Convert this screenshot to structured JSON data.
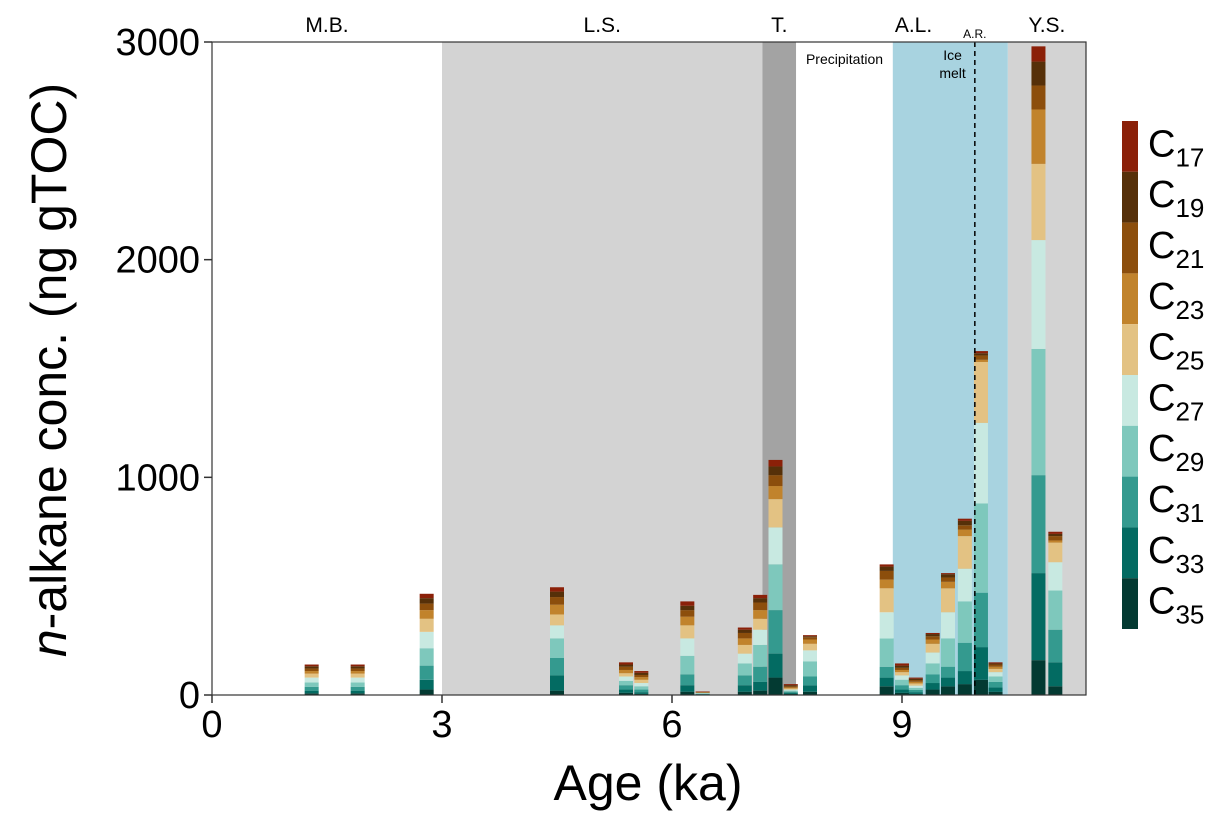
{
  "chart_data": {
    "type": "bar",
    "stacked": true,
    "xlabel_prefix": "n",
    "ylabel": "-alkane conc. (ng gTOC)",
    "xlabel": "Age (ka)",
    "xlim": [
      0,
      11.4
    ],
    "ylim": [
      0,
      3000
    ],
    "x_ticks": [
      0,
      3,
      6,
      9
    ],
    "y_ticks": [
      0,
      1000,
      2000,
      3000
    ],
    "grid": false,
    "legend_position": "right",
    "periods": [
      {
        "label": "M.B.",
        "start": 0,
        "end": 3.0,
        "color": "#ffffff"
      },
      {
        "label": "L.S.",
        "start": 3.0,
        "end": 7.18,
        "color": "#d3d3d3"
      },
      {
        "label": "T.",
        "start": 7.18,
        "end": 7.62,
        "color": "#a3a3a3"
      },
      {
        "label": "A.L.",
        "start": 7.62,
        "end": 10.38,
        "color": "#ffffff"
      },
      {
        "label": "Y.S.",
        "start": 10.38,
        "end": 11.4,
        "color": "#d3d3d3"
      }
    ],
    "sub_periods": [
      {
        "label": "Precipitation",
        "start": 7.62,
        "end": 8.88,
        "color": "#ffffff"
      },
      {
        "label_line1": "Ice",
        "label_line2": "melt",
        "start": 8.88,
        "end": 10.38,
        "color": "#a8d3e0"
      }
    ],
    "ar_marker": {
      "label": "A.R.",
      "x": 9.95
    },
    "legend": [
      {
        "base": "C",
        "sub": "17",
        "color": "#8b2008"
      },
      {
        "base": "C",
        "sub": "19",
        "color": "#563009"
      },
      {
        "base": "C",
        "sub": "21",
        "color": "#8c4e0c"
      },
      {
        "base": "C",
        "sub": "23",
        "color": "#c1832c"
      },
      {
        "base": "C",
        "sub": "25",
        "color": "#e3c283"
      },
      {
        "base": "C",
        "sub": "27",
        "color": "#c8e9e1"
      },
      {
        "base": "C",
        "sub": "29",
        "color": "#7ec8bc"
      },
      {
        "base": "C",
        "sub": "31",
        "color": "#349a8f"
      },
      {
        "base": "C",
        "sub": "33",
        "color": "#036b62"
      },
      {
        "base": "C",
        "sub": "35",
        "color": "#033a32"
      }
    ],
    "stack_order_bottom_to_top": [
      "C35",
      "C33",
      "C31",
      "C29",
      "C27",
      "C25",
      "C23",
      "C21",
      "C19",
      "C17"
    ],
    "samples": [
      {
        "x": 1.3,
        "values": [
          8,
          12,
          18,
          20,
          22,
          18,
          12,
          12,
          10,
          8
        ]
      },
      {
        "x": 1.9,
        "values": [
          8,
          12,
          18,
          20,
          22,
          18,
          12,
          12,
          10,
          8
        ]
      },
      {
        "x": 2.8,
        "values": [
          25,
          45,
          65,
          80,
          75,
          60,
          40,
          30,
          25,
          20
        ]
      },
      {
        "x": 4.5,
        "values": [
          20,
          70,
          80,
          90,
          60,
          50,
          45,
          35,
          25,
          20
        ]
      },
      {
        "x": 5.4,
        "values": [
          10,
          15,
          20,
          20,
          20,
          15,
          15,
          15,
          10,
          10
        ]
      },
      {
        "x": 5.6,
        "values": [
          5,
          8,
          12,
          15,
          15,
          15,
          12,
          10,
          10,
          8
        ]
      },
      {
        "x": 6.2,
        "values": [
          15,
          30,
          50,
          85,
          80,
          60,
          40,
          30,
          20,
          20
        ]
      },
      {
        "x": 6.4,
        "values": [
          2,
          2,
          2,
          2,
          2,
          2,
          1,
          1,
          1,
          1
        ]
      },
      {
        "x": 6.95,
        "values": [
          15,
          30,
          45,
          55,
          45,
          40,
          30,
          25,
          15,
          10
        ]
      },
      {
        "x": 7.15,
        "values": [
          20,
          40,
          70,
          100,
          70,
          50,
          40,
          35,
          20,
          15
        ]
      },
      {
        "x": 7.35,
        "values": [
          80,
          110,
          200,
          210,
          170,
          130,
          60,
          50,
          40,
          30
        ]
      },
      {
        "x": 7.55,
        "values": [
          5,
          5,
          5,
          5,
          5,
          5,
          5,
          5,
          5,
          5
        ]
      },
      {
        "x": 7.8,
        "values": [
          15,
          30,
          40,
          70,
          50,
          30,
          20,
          10,
          5,
          5
        ]
      },
      {
        "x": 8.8,
        "values": [
          40,
          40,
          50,
          130,
          120,
          110,
          40,
          40,
          20,
          10
        ]
      },
      {
        "x": 9.0,
        "values": [
          10,
          15,
          20,
          25,
          20,
          15,
          10,
          10,
          10,
          10
        ]
      },
      {
        "x": 9.18,
        "values": [
          5,
          8,
          10,
          10,
          10,
          10,
          8,
          8,
          6,
          5
        ]
      },
      {
        "x": 9.4,
        "values": [
          25,
          30,
          40,
          50,
          50,
          40,
          20,
          15,
          10,
          5
        ]
      },
      {
        "x": 9.6,
        "values": [
          40,
          40,
          50,
          130,
          120,
          110,
          30,
          20,
          15,
          5
        ]
      },
      {
        "x": 9.82,
        "values": [
          50,
          60,
          130,
          190,
          150,
          150,
          30,
          20,
          20,
          10
        ]
      },
      {
        "x": 10.03,
        "values": [
          70,
          150,
          250,
          410,
          370,
          280,
          10,
          20,
          10,
          10
        ]
      },
      {
        "x": 10.22,
        "values": [
          15,
          20,
          25,
          25,
          20,
          15,
          10,
          10,
          5,
          5
        ]
      },
      {
        "x": 10.78,
        "values": [
          160,
          400,
          450,
          580,
          500,
          350,
          250,
          110,
          110,
          70
        ]
      },
      {
        "x": 11.0,
        "values": [
          40,
          110,
          150,
          180,
          130,
          90,
          10,
          20,
          10,
          10
        ]
      }
    ]
  }
}
